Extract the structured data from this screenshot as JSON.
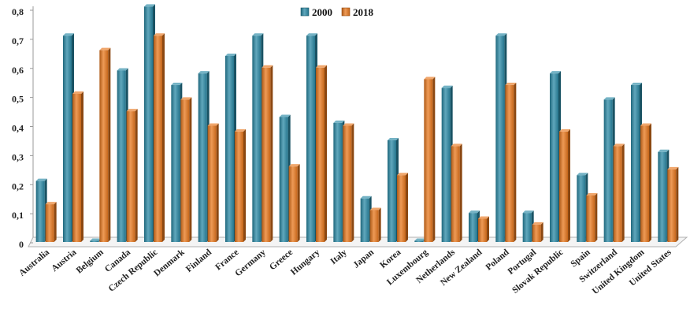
{
  "chart_data": {
    "type": "bar",
    "title": "",
    "xlabel": "",
    "ylabel": "",
    "ylim": [
      0,
      0.8
    ],
    "yticks": [
      "0",
      "0,1",
      "0,2",
      "0,3",
      "0,4",
      "0,5",
      "0,6",
      "0,7",
      "0,8"
    ],
    "grid": false,
    "legend_position": "top-center",
    "categories": [
      "Australia",
      "Austria",
      "Belgium",
      "Canada",
      "Czech Republic",
      "Denmark",
      "Finland",
      "France",
      "Germany",
      "Greece",
      "Hungary",
      "Italy",
      "Japan",
      "Korea",
      "Luxembourg",
      "Netherlands",
      "New Zealand",
      "Poland",
      "Portugal",
      "Slovak Republic",
      "Spain",
      "Switzerland",
      "United Kingdom",
      "United States"
    ],
    "series": [
      {
        "name": "2000",
        "color": "#2b8aa6",
        "values": [
          0.21,
          0.71,
          0.0,
          0.59,
          0.81,
          0.54,
          0.58,
          0.64,
          0.71,
          0.43,
          0.71,
          0.41,
          0.15,
          0.35,
          0.0,
          0.53,
          0.1,
          0.71,
          0.1,
          0.58,
          0.23,
          0.49,
          0.54,
          0.31
        ]
      },
      {
        "name": "2018",
        "color": "#e8781e",
        "values": [
          0.13,
          0.51,
          0.66,
          0.45,
          0.71,
          0.49,
          0.4,
          0.38,
          0.6,
          0.26,
          0.6,
          0.4,
          0.11,
          0.23,
          0.56,
          0.33,
          0.08,
          0.54,
          0.06,
          0.38,
          0.16,
          0.33,
          0.4,
          0.25
        ]
      }
    ]
  }
}
